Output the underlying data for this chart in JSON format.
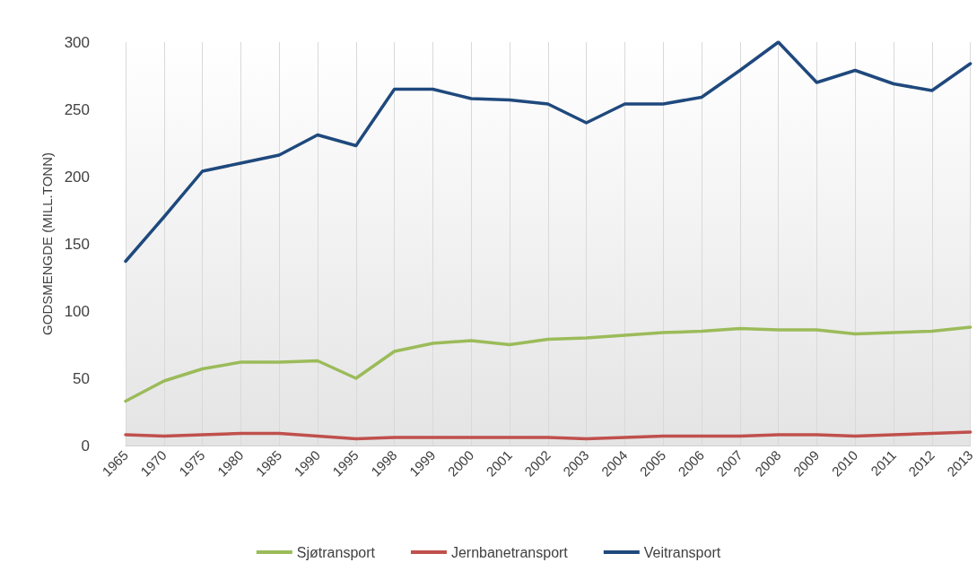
{
  "chart_data": {
    "type": "line",
    "ylabel": "GODSMENGDE (MILL.TONN)",
    "categories": [
      "1965",
      "1970",
      "1975",
      "1980",
      "1985",
      "1990",
      "1995",
      "1998",
      "1999",
      "2000",
      "2001",
      "2002",
      "2003",
      "2004",
      "2005",
      "2006",
      "2007",
      "2008",
      "2009",
      "2010",
      "2011",
      "2012",
      "2013"
    ],
    "series": [
      {
        "name": "Sjøtransport",
        "color": "#9bbb59",
        "values": [
          33,
          48,
          57,
          62,
          62,
          63,
          50,
          70,
          76,
          78,
          75,
          79,
          80,
          82,
          84,
          85,
          87,
          86,
          86,
          83,
          84,
          85,
          88
        ]
      },
      {
        "name": "Jernbanetransport",
        "color": "#c0504d",
        "values": [
          8,
          7,
          8,
          9,
          9,
          7,
          5,
          6,
          6,
          6,
          6,
          6,
          5,
          6,
          7,
          7,
          7,
          8,
          8,
          7,
          8,
          9,
          10
        ]
      },
      {
        "name": "Veitransport",
        "color": "#1f497d",
        "values": [
          137,
          170,
          204,
          210,
          216,
          231,
          223,
          265,
          265,
          258,
          257,
          254,
          240,
          254,
          254,
          259,
          279,
          300,
          270,
          279,
          269,
          264,
          284
        ]
      }
    ],
    "ylim": [
      0,
      300
    ],
    "yticks": [
      0,
      50,
      100,
      150,
      200,
      250,
      300
    ],
    "grid": "x",
    "legend": "bottom",
    "marker": "none",
    "line_style": "solid"
  }
}
